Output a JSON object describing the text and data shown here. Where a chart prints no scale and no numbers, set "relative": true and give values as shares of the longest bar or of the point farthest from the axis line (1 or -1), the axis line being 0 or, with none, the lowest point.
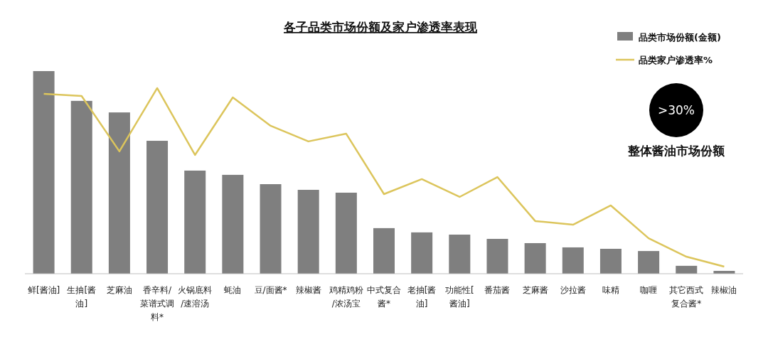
{
  "chart_data": {
    "type": "bar",
    "title": "各子品类市场份额及家户渗透率表现",
    "relative": true,
    "legend": "top right",
    "categories": [
      "鲜[酱油]",
      "生抽[酱油]",
      "芝麻油",
      "香辛料/菜谱式调料*",
      "火锅底料/速溶汤",
      "蚝油",
      "豆/面酱*",
      "辣椒酱",
      "鸡精鸡粉/浓汤宝",
      "中式复合酱*",
      "老抽[酱油]",
      "功能性[酱油]",
      "番茄酱",
      "芝麻酱",
      "沙拉酱",
      "味精",
      "咖喱",
      "其它西式复合酱*",
      "辣椒油"
    ],
    "series": [
      {
        "name": "品类市场份额(金额)",
        "type": "bar",
        "color": "#7f7f7f",
        "values": [
          1,
          0.853,
          0.796,
          0.656,
          0.509,
          0.488,
          0.442,
          0.414,
          0.4,
          0.225,
          0.204,
          0.193,
          0.172,
          0.151,
          0.13,
          0.123,
          0.112,
          0.039,
          0.014
        ]
      },
      {
        "name": "品类家户渗透率%",
        "type": "line",
        "color": "#dcc55c",
        "marker": "none",
        "values": [
          0.888,
          0.877,
          0.604,
          0.916,
          0.586,
          0.87,
          0.73,
          0.653,
          0.691,
          0.393,
          0.467,
          0.379,
          0.477,
          0.26,
          0.242,
          0.337,
          0.175,
          0.084,
          0.035
        ]
      }
    ],
    "annotations": [
      ">30%",
      "整体酱油市场份额"
    ]
  }
}
